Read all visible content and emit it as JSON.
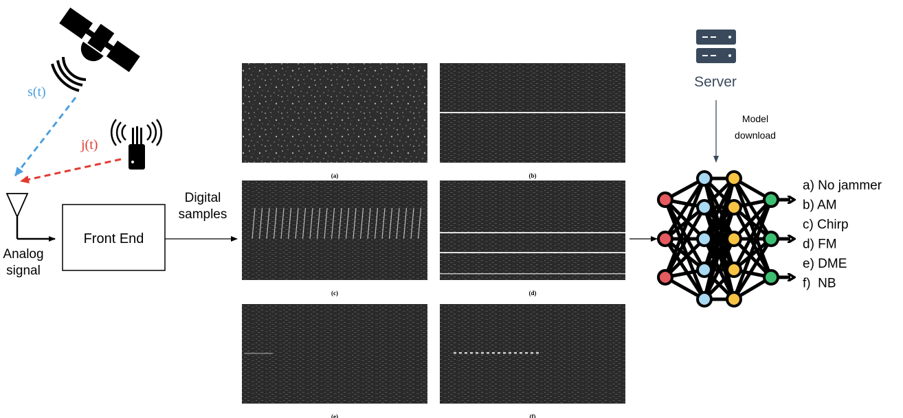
{
  "signals": {
    "satellite": "s(t)",
    "jammer": "j(t)"
  },
  "receiver": {
    "analog_label": [
      "Analog",
      "signal"
    ],
    "front_end": "Front End",
    "digital_label": [
      "Digital",
      "samples"
    ]
  },
  "spectrograms": [
    {
      "id": "a",
      "caption": "(a)",
      "pattern": "noise"
    },
    {
      "id": "b",
      "caption": "(b)",
      "pattern": "single-line"
    },
    {
      "id": "c",
      "caption": "(c)",
      "pattern": "chirp"
    },
    {
      "id": "d",
      "caption": "(d)",
      "pattern": "multi-line"
    },
    {
      "id": "e",
      "caption": "(e)",
      "pattern": "pulses"
    },
    {
      "id": "f",
      "caption": "(f)",
      "pattern": "narrowband"
    }
  ],
  "server": {
    "label": "Server",
    "download_label": [
      "Model",
      "download"
    ]
  },
  "classes": [
    "a) No jammer",
    "b) AM",
    "c) Chirp",
    "d) FM",
    "e) DME",
    "f)  NB"
  ],
  "colors": {
    "satellite_signal": "#4a9fe0",
    "jammer_signal": "#e03a2f",
    "node_input": "#e45a5e",
    "node_hidden1": "#a9d9f2",
    "node_hidden2": "#f6c344",
    "node_output": "#3dbf72",
    "spectrogram_bg": "#2c2c2c"
  },
  "icons": [
    "satellite-icon",
    "jammer-icon",
    "antenna-icon",
    "server-icon",
    "neural-network-icon"
  ]
}
